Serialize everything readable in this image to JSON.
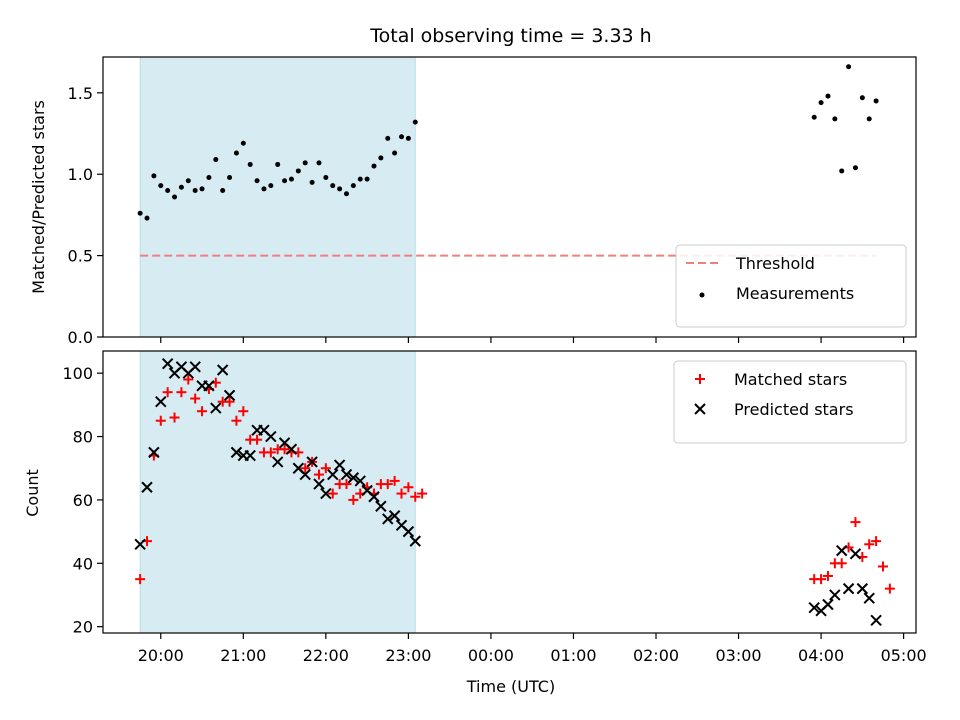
{
  "chart_data": {
    "title": "Total observing time = 3.33 h",
    "xlabel": "Time (UTC)",
    "x_tick_labels": [
      "20:00",
      "21:00",
      "22:00",
      "23:00",
      "00:00",
      "01:00",
      "02:00",
      "03:00",
      "04:00",
      "05:00"
    ],
    "shaded_interval": {
      "start": "19:45",
      "end": "23:05",
      "color": "#add8e6"
    },
    "panels": [
      {
        "type": "scatter",
        "ylabel": "Matched/Predicted stars",
        "ylim": [
          0,
          1.72
        ],
        "y_ticks": [
          "0.0",
          "0.5",
          "1.0",
          "1.5"
        ],
        "legend_position": "lower-right",
        "threshold": {
          "name": "Threshold",
          "value": 0.5,
          "start": "19:45",
          "end": "04:40",
          "color": "#f08080",
          "style": "dashed"
        },
        "series": [
          {
            "name": "Measurements",
            "color": "#000000",
            "marker": "dot",
            "points": [
              [
                "19:45",
                0.76
              ],
              [
                "19:50",
                0.73
              ],
              [
                "19:55",
                0.99
              ],
              [
                "20:00",
                0.93
              ],
              [
                "20:05",
                0.9
              ],
              [
                "20:10",
                0.86
              ],
              [
                "20:15",
                0.92
              ],
              [
                "20:20",
                0.96
              ],
              [
                "20:25",
                0.9
              ],
              [
                "20:30",
                0.91
              ],
              [
                "20:35",
                0.98
              ],
              [
                "20:40",
                1.09
              ],
              [
                "20:45",
                0.9
              ],
              [
                "20:50",
                0.98
              ],
              [
                "20:55",
                1.13
              ],
              [
                "21:00",
                1.19
              ],
              [
                "21:05",
                1.06
              ],
              [
                "21:10",
                0.96
              ],
              [
                "21:15",
                0.91
              ],
              [
                "21:20",
                0.93
              ],
              [
                "21:25",
                1.06
              ],
              [
                "21:30",
                0.96
              ],
              [
                "21:35",
                0.97
              ],
              [
                "21:40",
                1.02
              ],
              [
                "21:45",
                1.07
              ],
              [
                "21:50",
                0.95
              ],
              [
                "21:55",
                1.07
              ],
              [
                "22:00",
                0.98
              ],
              [
                "22:05",
                0.93
              ],
              [
                "22:10",
                0.91
              ],
              [
                "22:15",
                0.88
              ],
              [
                "22:20",
                0.93
              ],
              [
                "22:25",
                0.97
              ],
              [
                "22:30",
                0.97
              ],
              [
                "22:35",
                1.05
              ],
              [
                "22:40",
                1.1
              ],
              [
                "22:45",
                1.22
              ],
              [
                "22:50",
                1.13
              ],
              [
                "22:55",
                1.23
              ],
              [
                "23:00",
                1.22
              ],
              [
                "23:05",
                1.32
              ],
              [
                "03:55",
                1.35
              ],
              [
                "04:00",
                1.44
              ],
              [
                "04:05",
                1.48
              ],
              [
                "04:10",
                1.34
              ],
              [
                "04:15",
                1.02
              ],
              [
                "04:20",
                1.66
              ],
              [
                "04:25",
                1.04
              ],
              [
                "04:30",
                1.47
              ],
              [
                "04:35",
                1.34
              ],
              [
                "04:40",
                1.45
              ]
            ]
          }
        ]
      },
      {
        "type": "scatter",
        "ylabel": "Count",
        "ylim": [
          18,
          107
        ],
        "y_ticks": [
          "20",
          "40",
          "60",
          "80",
          "100"
        ],
        "legend_position": "upper-right",
        "series": [
          {
            "name": "Matched stars",
            "color": "#ff0000",
            "marker": "plus",
            "points": [
              [
                "19:45",
                35
              ],
              [
                "19:50",
                47
              ],
              [
                "19:55",
                74
              ],
              [
                "20:00",
                85
              ],
              [
                "20:05",
                94
              ],
              [
                "20:10",
                86
              ],
              [
                "20:15",
                94
              ],
              [
                "20:20",
                98
              ],
              [
                "20:25",
                92
              ],
              [
                "20:30",
                88
              ],
              [
                "20:35",
                95
              ],
              [
                "20:40",
                97
              ],
              [
                "20:45",
                91
              ],
              [
                "20:50",
                91
              ],
              [
                "20:55",
                85
              ],
              [
                "21:00",
                88
              ],
              [
                "21:05",
                79
              ],
              [
                "21:10",
                79
              ],
              [
                "21:15",
                75
              ],
              [
                "21:20",
                75
              ],
              [
                "21:25",
                76
              ],
              [
                "21:30",
                76
              ],
              [
                "21:35",
                75
              ],
              [
                "21:40",
                75
              ],
              [
                "21:45",
                70
              ],
              [
                "21:50",
                72
              ],
              [
                "21:55",
                68
              ],
              [
                "22:00",
                70
              ],
              [
                "22:05",
                62
              ],
              [
                "22:10",
                65
              ],
              [
                "22:15",
                65
              ],
              [
                "22:20",
                60
              ],
              [
                "22:25",
                62
              ],
              [
                "22:30",
                64
              ],
              [
                "22:35",
                62
              ],
              [
                "22:40",
                65
              ],
              [
                "22:45",
                65
              ],
              [
                "22:50",
                66
              ],
              [
                "22:55",
                62
              ],
              [
                "23:00",
                64
              ],
              [
                "23:05",
                61
              ],
              [
                "23:10",
                62
              ],
              [
                "03:55",
                35
              ],
              [
                "04:00",
                35
              ],
              [
                "04:05",
                36
              ],
              [
                "04:10",
                40
              ],
              [
                "04:15",
                40
              ],
              [
                "04:20",
                45
              ],
              [
                "04:25",
                53
              ],
              [
                "04:30",
                42
              ],
              [
                "04:35",
                46
              ],
              [
                "04:40",
                47
              ],
              [
                "04:45",
                39
              ],
              [
                "04:50",
                32
              ]
            ]
          },
          {
            "name": "Predicted stars",
            "color": "#000000",
            "marker": "x",
            "points": [
              [
                "19:45",
                46
              ],
              [
                "19:50",
                64
              ],
              [
                "19:55",
                75
              ],
              [
                "20:00",
                91
              ],
              [
                "20:05",
                103
              ],
              [
                "20:10",
                100
              ],
              [
                "20:15",
                102
              ],
              [
                "20:20",
                100
              ],
              [
                "20:25",
                102
              ],
              [
                "20:30",
                96
              ],
              [
                "20:35",
                96
              ],
              [
                "20:40",
                89
              ],
              [
                "20:45",
                101
              ],
              [
                "20:50",
                93
              ],
              [
                "20:55",
                75
              ],
              [
                "21:00",
                74
              ],
              [
                "21:05",
                74
              ],
              [
                "21:10",
                82
              ],
              [
                "21:15",
                82
              ],
              [
                "21:20",
                80
              ],
              [
                "21:25",
                72
              ],
              [
                "21:30",
                78
              ],
              [
                "21:35",
                76
              ],
              [
                "21:40",
                70
              ],
              [
                "21:45",
                68
              ],
              [
                "21:50",
                72
              ],
              [
                "21:55",
                65
              ],
              [
                "22:00",
                62
              ],
              [
                "22:05",
                68
              ],
              [
                "22:10",
                71
              ],
              [
                "22:15",
                68
              ],
              [
                "22:20",
                67
              ],
              [
                "22:25",
                66
              ],
              [
                "22:30",
                63
              ],
              [
                "22:35",
                61
              ],
              [
                "22:40",
                58
              ],
              [
                "22:45",
                54
              ],
              [
                "22:50",
                55
              ],
              [
                "22:55",
                52
              ],
              [
                "23:00",
                50
              ],
              [
                "23:05",
                47
              ],
              [
                "03:55",
                26
              ],
              [
                "04:00",
                25
              ],
              [
                "04:05",
                27
              ],
              [
                "04:10",
                30
              ],
              [
                "04:15",
                44
              ],
              [
                "04:20",
                32
              ],
              [
                "04:25",
                43
              ],
              [
                "04:30",
                32
              ],
              [
                "04:35",
                29
              ],
              [
                "04:40",
                22
              ]
            ]
          }
        ]
      }
    ]
  }
}
